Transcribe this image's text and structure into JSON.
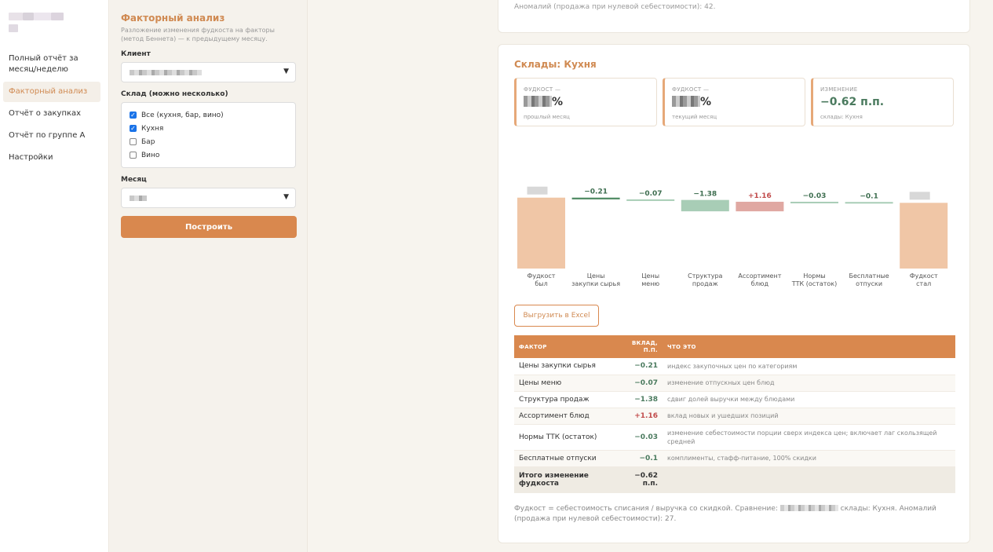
{
  "nav": {
    "items": [
      "Полный отчёт за месяц/неделю",
      "Факторный анализ",
      "Отчёт о закупках",
      "Отчёт по группе А",
      "Настройки"
    ],
    "active_index": 1
  },
  "filter": {
    "title": "Факторный анализ",
    "description": "Разложение изменения фудкоста на факторы (метод Беннета) — к предыдущему месяцу.",
    "client_label": "Клиент",
    "warehouse_label": "Склад (можно несколько)",
    "warehouses": [
      {
        "label": "Все (кухня, бар, вино)",
        "checked": true
      },
      {
        "label": "Кухня",
        "checked": true
      },
      {
        "label": "Бар",
        "checked": false
      },
      {
        "label": "Вино",
        "checked": false
      }
    ],
    "month_label": "Месяц",
    "build_button": "Построить"
  },
  "top_card": {
    "text": "Аномалий (продажа при нулевой себестоимости): 42."
  },
  "report": {
    "title": "Склады: Кухня",
    "kpis": [
      {
        "label": "ФУДКОСТ —",
        "value_suffix": "%",
        "sub": "прошлый месяц"
      },
      {
        "label": "ФУДКОСТ —",
        "value_suffix": "%",
        "sub": "текущий месяц"
      },
      {
        "label": "ИЗМЕНЕНИЕ",
        "value": "−0.62 п.п.",
        "sub": "склады: Кухня"
      }
    ],
    "excel_button": "Выгрузить в Excel",
    "table": {
      "headers": [
        "ФАКТОР",
        "ВКЛАД, П.П.",
        "ЧТО ЭТО"
      ],
      "rows": [
        {
          "factor": "Цены закупки сырья",
          "value": "−0.21",
          "what": "индекс закупочных цен по категориям"
        },
        {
          "factor": "Цены меню",
          "value": "−0.07",
          "what": "изменение отпускных цен блюд"
        },
        {
          "factor": "Структура продаж",
          "value": "−1.38",
          "what": "сдвиг долей выручки между блюдами"
        },
        {
          "factor": "Ассортимент блюд",
          "value": "+1.16",
          "what": "вклад новых и ушедших позиций"
        },
        {
          "factor": "Нормы ТТК (остаток)",
          "value": "−0.03",
          "what": "изменение себестоимости порции сверх индекса цен; включает лаг скользящей средней"
        },
        {
          "factor": "Бесплатные отпуски",
          "value": "−0.1",
          "what": "комплименты, стафф-питание, 100% скидки"
        }
      ],
      "total_label": "Итого изменение фудкоста",
      "total_value": "−0.62 п.п."
    },
    "footnote_a": "Фудкост = себестоимость списания / выручка со скидкой. Сравнение:",
    "footnote_b": "склады: Кухня. Аномалий (продажа при нулевой себестоимости): 27."
  },
  "chart_data": {
    "type": "bar",
    "categories": [
      "Фудкост был",
      "Цены закупки сырья",
      "Цены меню",
      "Структура продаж",
      "Ассортимент блюд",
      "Нормы ТТК (остаток)",
      "Бесплатные отпуски",
      "Фудкост стал"
    ],
    "values": [
      null,
      -0.21,
      -0.07,
      -1.38,
      1.16,
      -0.03,
      -0.1,
      null
    ],
    "value_labels": [
      "%",
      "−0.21",
      "−0.07",
      "−1.38",
      "+1.16",
      "−0.03",
      "−0.1",
      "%"
    ]
  }
}
